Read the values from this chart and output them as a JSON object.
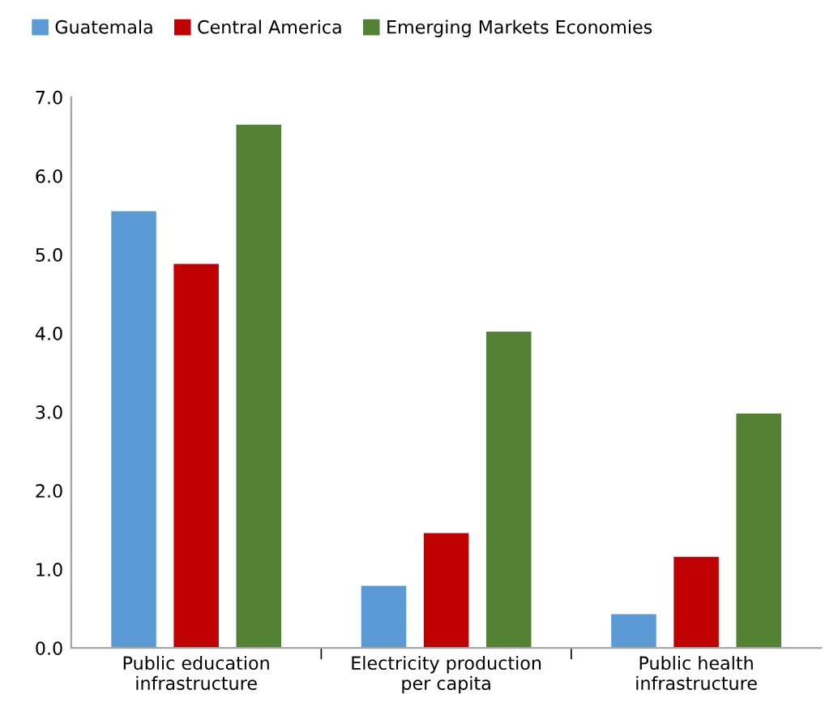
{
  "chart_data": {
    "type": "bar",
    "categories": [
      "Public education\ninfrastructure",
      "Electricity production\nper capita",
      "Public health\ninfrastructure"
    ],
    "series": [
      {
        "name": "Guatemala",
        "color": "#5b9bd5",
        "values": [
          5.55,
          0.79,
          0.43
        ]
      },
      {
        "name": "Central America",
        "color": "#c00000",
        "values": [
          4.88,
          1.46,
          1.16
        ]
      },
      {
        "name": "Emerging Markets Economies",
        "color": "#548235",
        "values": [
          6.65,
          4.02,
          2.98
        ]
      }
    ],
    "ylim": [
      0,
      7
    ],
    "yticks": [
      {
        "value": 0,
        "label": "0.0"
      },
      {
        "value": 1,
        "label": "1.0"
      },
      {
        "value": 2,
        "label": "2.0"
      },
      {
        "value": 3,
        "label": "3.0"
      },
      {
        "value": 4,
        "label": "4.0"
      },
      {
        "value": 5,
        "label": "5.0"
      },
      {
        "value": 6,
        "label": "6.0"
      },
      {
        "value": 7,
        "label": "7.0"
      }
    ],
    "grid": false,
    "legend": "top left"
  }
}
